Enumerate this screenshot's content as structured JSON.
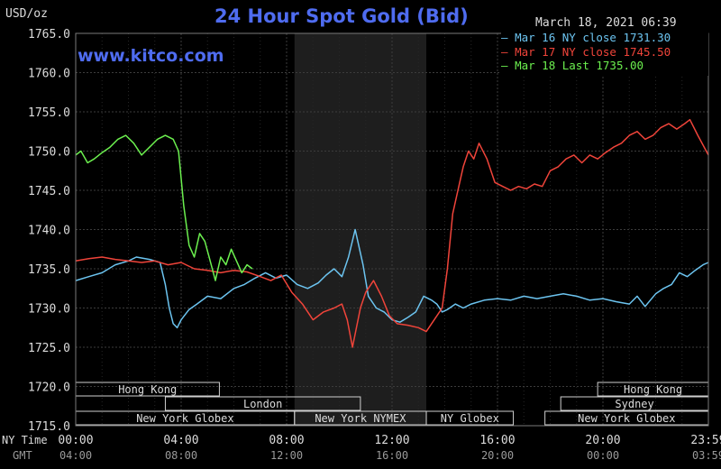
{
  "unit_label": "USD/oz",
  "header": {
    "title": "24 Hour Spot Gold (Bid)",
    "datetime": "March 18, 2021 06:39",
    "site": "www.kitco.com"
  },
  "colors": {
    "background": "#000000",
    "grid": "#3c3c3c",
    "shade": "#1e1e1e",
    "title": "#4f6cf0",
    "mar16": "#6cc4f0",
    "mar17": "#f0443a",
    "mar18": "#6cf04f"
  },
  "chart_data": {
    "type": "line",
    "title": "24 Hour Spot Gold (Bid)",
    "ylabel": "USD/oz",
    "ylim": [
      1715,
      1765
    ],
    "xlim": [
      0,
      24
    ],
    "y_ticks": [
      "1715.0",
      "1720.0",
      "1725.0",
      "1730.0",
      "1735.0",
      "1740.0",
      "1745.0",
      "1750.0",
      "1755.0",
      "1760.0",
      "1765.0"
    ],
    "y_tick_values": [
      1715,
      1720,
      1725,
      1730,
      1735,
      1740,
      1745,
      1750,
      1755,
      1760,
      1765
    ],
    "x_ticks_ny": [
      "00:00",
      "04:00",
      "08:00",
      "12:00",
      "16:00",
      "20:00",
      "23:59"
    ],
    "x_ticks_gmt": [
      "04:00",
      "08:00",
      "12:00",
      "16:00",
      "20:00",
      "00:00",
      "03:59"
    ],
    "x_tick_values": [
      0,
      4,
      8,
      12,
      16,
      20,
      24
    ],
    "x_row_labels": [
      "NY Time",
      "GMT"
    ],
    "shaded_hours": [
      8.3,
      13.3
    ],
    "series": [
      {
        "name": "Mar 16 NY close",
        "legend_label": "Mar 16 NY close 1731.30",
        "color_key": "mar16",
        "x": [
          0,
          0.5,
          1,
          1.5,
          2,
          2.3,
          2.8,
          3.2,
          3.4,
          3.55,
          3.7,
          3.85,
          4,
          4.3,
          4.6,
          5,
          5.5,
          6,
          6.4,
          6.8,
          7.2,
          7.6,
          8,
          8.4,
          8.8,
          9.2,
          9.5,
          9.8,
          10.1,
          10.35,
          10.6,
          10.9,
          11.1,
          11.4,
          11.7,
          12,
          12.3,
          12.6,
          12.9,
          13.2,
          13.5,
          13.7,
          13.9,
          14.1,
          14.4,
          14.7,
          15,
          15.5,
          16,
          16.5,
          17,
          17.5,
          18,
          18.5,
          19,
          19.5,
          20,
          20.5,
          21,
          21.3,
          21.6,
          21.8,
          22,
          22.3,
          22.6,
          22.9,
          23.2,
          23.5,
          23.8,
          24
        ],
        "values": [
          1733.5,
          1734,
          1734.5,
          1735.5,
          1736,
          1736.5,
          1736.2,
          1735.8,
          1733,
          1730,
          1728,
          1727.5,
          1728.5,
          1729.8,
          1730.5,
          1731.5,
          1731.2,
          1732.5,
          1733,
          1733.8,
          1734.5,
          1733.8,
          1734.2,
          1733,
          1732.5,
          1733.2,
          1734.2,
          1735,
          1734,
          1736.5,
          1740,
          1735.5,
          1731.5,
          1730,
          1729.5,
          1728.5,
          1728.2,
          1728.8,
          1729.5,
          1731.5,
          1731,
          1730.5,
          1729.5,
          1729.8,
          1730.5,
          1730,
          1730.5,
          1731,
          1731.2,
          1731,
          1731.5,
          1731.2,
          1731.5,
          1731.8,
          1731.5,
          1731,
          1731.2,
          1730.8,
          1730.5,
          1731.5,
          1730.2,
          1731,
          1731.8,
          1732.5,
          1733,
          1734.5,
          1734,
          1734.8,
          1735.5,
          1735.8
        ]
      },
      {
        "name": "Mar 17 NY close",
        "legend_label": "Mar 17 NY close 1745.50",
        "color_key": "mar17",
        "x": [
          0,
          0.5,
          1,
          1.5,
          2,
          2.5,
          3,
          3.5,
          4,
          4.5,
          5,
          5.5,
          6,
          6.5,
          7,
          7.4,
          7.8,
          8.2,
          8.6,
          9,
          9.4,
          9.8,
          10.1,
          10.3,
          10.5,
          10.8,
          11,
          11.3,
          11.6,
          11.9,
          12.2,
          12.6,
          13,
          13.3,
          13.6,
          13.9,
          14.1,
          14.3,
          14.5,
          14.7,
          14.9,
          15.1,
          15.3,
          15.6,
          15.9,
          16.2,
          16.5,
          16.8,
          17.1,
          17.4,
          17.7,
          18,
          18.3,
          18.6,
          18.9,
          19.2,
          19.5,
          19.8,
          20.1,
          20.4,
          20.7,
          21,
          21.3,
          21.6,
          21.9,
          22.2,
          22.5,
          22.8,
          23.1,
          23.3,
          23.6,
          24
        ],
        "values": [
          1736,
          1736.3,
          1736.5,
          1736.2,
          1736,
          1735.8,
          1736,
          1735.5,
          1735.8,
          1735,
          1734.8,
          1734.5,
          1734.8,
          1734.6,
          1734,
          1733.5,
          1734.2,
          1732,
          1730.5,
          1728.5,
          1729.5,
          1730,
          1730.5,
          1728.5,
          1725,
          1730,
          1732,
          1733.5,
          1731.5,
          1729,
          1728,
          1727.8,
          1727.5,
          1727,
          1728.5,
          1730,
          1735,
          1742,
          1745,
          1748,
          1750,
          1749,
          1751,
          1749,
          1746,
          1745.5,
          1745,
          1745.5,
          1745.2,
          1745.8,
          1745.5,
          1747.5,
          1748,
          1749,
          1749.5,
          1748.5,
          1749.5,
          1749,
          1749.8,
          1750.5,
          1751,
          1752,
          1752.5,
          1751.5,
          1752,
          1753,
          1753.5,
          1752.8,
          1753.5,
          1754,
          1752,
          1749.5
        ]
      },
      {
        "name": "Mar 18 Last",
        "legend_label": "Mar 18 Last 1735.00",
        "color_key": "mar18",
        "x": [
          0,
          0.2,
          0.45,
          0.7,
          1,
          1.3,
          1.6,
          1.9,
          2.2,
          2.5,
          2.8,
          3.1,
          3.4,
          3.7,
          3.9,
          4.1,
          4.3,
          4.5,
          4.7,
          4.9,
          5.1,
          5.3,
          5.5,
          5.7,
          5.9,
          6.1,
          6.3,
          6.5,
          6.7
        ],
        "values": [
          1749.5,
          1750,
          1748.5,
          1749,
          1749.8,
          1750.5,
          1751.5,
          1752,
          1751,
          1749.5,
          1750.5,
          1751.5,
          1752,
          1751.5,
          1750,
          1743,
          1738,
          1736.5,
          1739.5,
          1738.5,
          1736,
          1733.5,
          1736.5,
          1735.5,
          1737.5,
          1736,
          1734.5,
          1735.5,
          1735
        ]
      }
    ],
    "sessions": [
      {
        "label": "Hong Kong",
        "start": 0,
        "end": 5.45,
        "row": 0
      },
      {
        "label": "Hong Kong",
        "start": 19.8,
        "end": 24,
        "row": 0
      },
      {
        "label": "London",
        "start": 3.4,
        "end": 10.8,
        "row": 1
      },
      {
        "label": "Sydney",
        "start": 18.4,
        "end": 24,
        "row": 1
      },
      {
        "label": "New York Globex",
        "start": 0,
        "end": 8.3,
        "row": 2
      },
      {
        "label": "New York NYMEX",
        "start": 8.3,
        "end": 13.3,
        "row": 2
      },
      {
        "label": "NY Globex",
        "start": 13.3,
        "end": 16.6,
        "row": 2
      },
      {
        "label": "New York Globex",
        "start": 17.8,
        "end": 24,
        "row": 2
      }
    ]
  }
}
